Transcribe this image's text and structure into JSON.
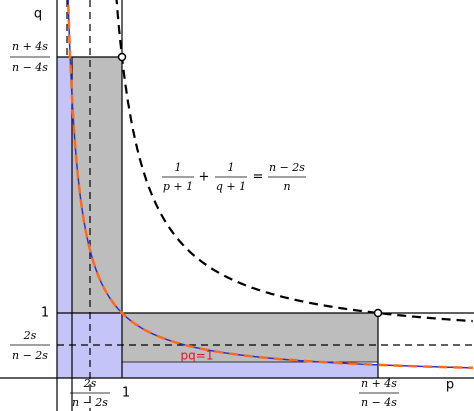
{
  "axes": {
    "x_label": "p",
    "y_label": "q"
  },
  "y_ticks": [
    {
      "numerator": "n + 4s",
      "denominator": "n − 4s"
    },
    {
      "label": "1"
    },
    {
      "numerator": "2s",
      "denominator": "n − 2s"
    }
  ],
  "x_ticks": [
    {
      "numerator": "2s",
      "denominator": "n − 2s"
    },
    {
      "label": "1"
    },
    {
      "numerator": "n + 4s",
      "denominator": "n − 4s"
    }
  ],
  "equation": {
    "lhs1": {
      "numerator": "1",
      "denominator": "p + 1"
    },
    "plus": "+",
    "lhs2": {
      "numerator": "1",
      "denominator": "q + 1"
    },
    "equals": "=",
    "rhs": {
      "numerator": "n − 2s",
      "denominator": "n"
    }
  },
  "curve_label": "pq=1"
}
